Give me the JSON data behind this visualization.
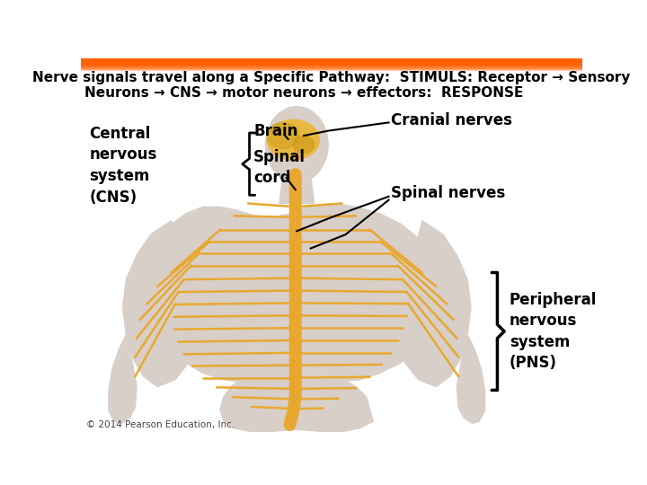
{
  "title_line1": "Nerve signals travel along a Specific Pathway:  STIMULS: Receptor → Sensory",
  "title_line2": "Neurons → CNS → motor neurons → effectors:  RESPONSE",
  "bg_color": "#ffffff",
  "title_font_size": 11,
  "title_color": "#000000",
  "cns_label": "Central\nnervous\nsystem\n(CNS)",
  "brain_label": "Brain",
  "spinal_label": "Spinal\ncord",
  "cranial_label": "Cranial nerves",
  "spinal_nerves_label": "Spinal nerves",
  "pns_label": "Peripheral\nnervous\nsystem\n(PNS)",
  "nerve_color": "#e8a830",
  "body_color": "#d8cfc8",
  "copyright": "© 2014 Pearson Education, Inc."
}
